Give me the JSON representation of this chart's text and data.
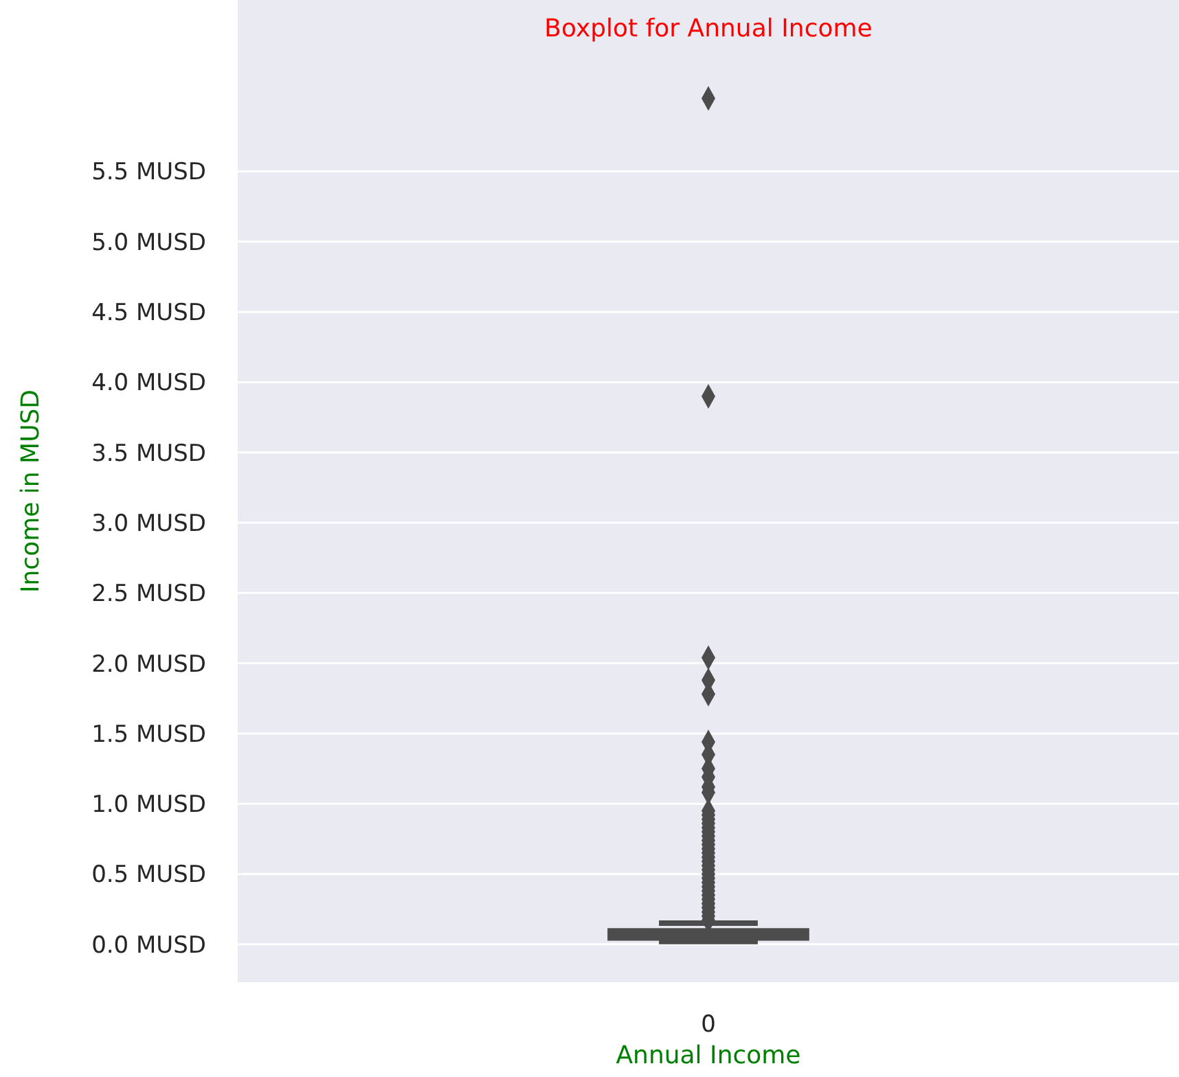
{
  "chart_data": {
    "type": "box",
    "title": "Boxplot for Annual Income",
    "xlabel": "Annual Income",
    "ylabel": "Income in MUSD",
    "categories": [
      "0"
    ],
    "boxes": [
      {
        "low": 0.02,
        "q1": 0.04,
        "median": 0.07,
        "q3": 0.1,
        "high": 0.15,
        "outliers": [
          0.17,
          0.2,
          0.23,
          0.26,
          0.29,
          0.32,
          0.35,
          0.38,
          0.41,
          0.44,
          0.47,
          0.5,
          0.53,
          0.56,
          0.59,
          0.62,
          0.65,
          0.68,
          0.71,
          0.74,
          0.77,
          0.8,
          0.83,
          0.86,
          0.89,
          0.92,
          0.95,
          1.08,
          1.12,
          1.19,
          1.25,
          1.35,
          1.44,
          1.78,
          1.88,
          2.04,
          3.9,
          6.02
        ]
      }
    ],
    "color": "#4c4c4c",
    "ylim": [
      -0.27,
      6.72
    ],
    "yticks": [
      {
        "value": 0,
        "label": "0.0 MUSD"
      },
      {
        "value": 0.5,
        "label": "0.5 MUSD"
      },
      {
        "value": 1,
        "label": "1.0 MUSD"
      },
      {
        "value": 1.5,
        "label": "1.5 MUSD"
      },
      {
        "value": 2,
        "label": "2.0 MUSD"
      },
      {
        "value": 2.5,
        "label": "2.5 MUSD"
      },
      {
        "value": 3,
        "label": "3.0 MUSD"
      },
      {
        "value": 3.5,
        "label": "3.5 MUSD"
      },
      {
        "value": 4,
        "label": "4.0 MUSD"
      },
      {
        "value": 4.5,
        "label": "4.5 MUSD"
      },
      {
        "value": 5,
        "label": "5.0 MUSD"
      },
      {
        "value": 5.5,
        "label": "5.5 MUSD"
      }
    ],
    "grid": "y"
  }
}
